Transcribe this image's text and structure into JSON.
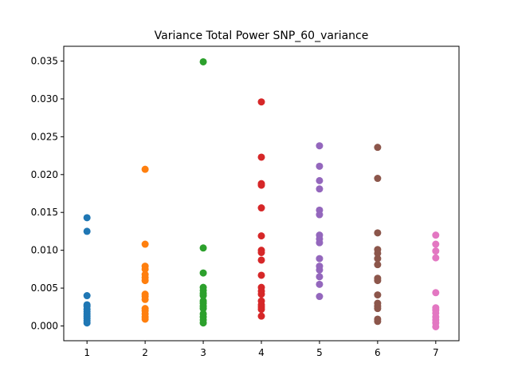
{
  "chart_data": {
    "type": "scatter",
    "title": "Variance Total Power SNP_60_variance",
    "xlabel": "",
    "ylabel": "",
    "xlim": [
      0.6,
      7.4
    ],
    "ylim": [
      -0.00195,
      0.03695
    ],
    "x_ticks": [
      "1",
      "2",
      "3",
      "4",
      "5",
      "6",
      "7"
    ],
    "y_ticks": [
      "0.000",
      "0.005",
      "0.010",
      "0.015",
      "0.020",
      "0.025",
      "0.030",
      "0.035"
    ],
    "grid": false,
    "legend": "none",
    "series": [
      {
        "x": 1,
        "color": "#1f77b4",
        "values": [
          0.0143,
          0.0125,
          0.004,
          0.0028,
          0.0026,
          0.0022,
          0.0019,
          0.0016,
          0.0013,
          0.001,
          0.0007,
          0.0004
        ]
      },
      {
        "x": 2,
        "color": "#ff7f0e",
        "values": [
          0.0207,
          0.0108,
          0.0079,
          0.0075,
          0.0068,
          0.0064,
          0.006,
          0.0042,
          0.0039,
          0.0035,
          0.0023,
          0.002,
          0.0016,
          0.0012,
          0.0009
        ]
      },
      {
        "x": 3,
        "color": "#2ca02c",
        "values": [
          0.0349,
          0.0103,
          0.007,
          0.0051,
          0.0047,
          0.0043,
          0.004,
          0.0033,
          0.003,
          0.0026,
          0.0023,
          0.0016,
          0.0012,
          0.0008,
          0.0004
        ]
      },
      {
        "x": 4,
        "color": "#d62728",
        "values": [
          0.0296,
          0.0223,
          0.0188,
          0.0186,
          0.0156,
          0.0119,
          0.01,
          0.0097,
          0.0087,
          0.0067,
          0.0051,
          0.0046,
          0.0042,
          0.0033,
          0.0028,
          0.0025,
          0.0022,
          0.0013
        ]
      },
      {
        "x": 5,
        "color": "#9467bd",
        "values": [
          0.0238,
          0.0211,
          0.0192,
          0.0181,
          0.0153,
          0.0147,
          0.012,
          0.0115,
          0.011,
          0.0089,
          0.0079,
          0.0074,
          0.0065,
          0.0055,
          0.0039
        ]
      },
      {
        "x": 6,
        "color": "#8c564b",
        "values": [
          0.0236,
          0.0195,
          0.0123,
          0.0101,
          0.0096,
          0.0089,
          0.0081,
          0.0063,
          0.006,
          0.0041,
          0.003,
          0.0026,
          0.0023,
          0.0009,
          0.0006
        ]
      },
      {
        "x": 7,
        "color": "#e377c2",
        "values": [
          0.012,
          0.0108,
          0.0099,
          0.009,
          0.0044,
          0.0024,
          0.0021,
          0.0017,
          0.0012,
          0.0008,
          0.0004,
          -0.0001
        ]
      }
    ]
  }
}
